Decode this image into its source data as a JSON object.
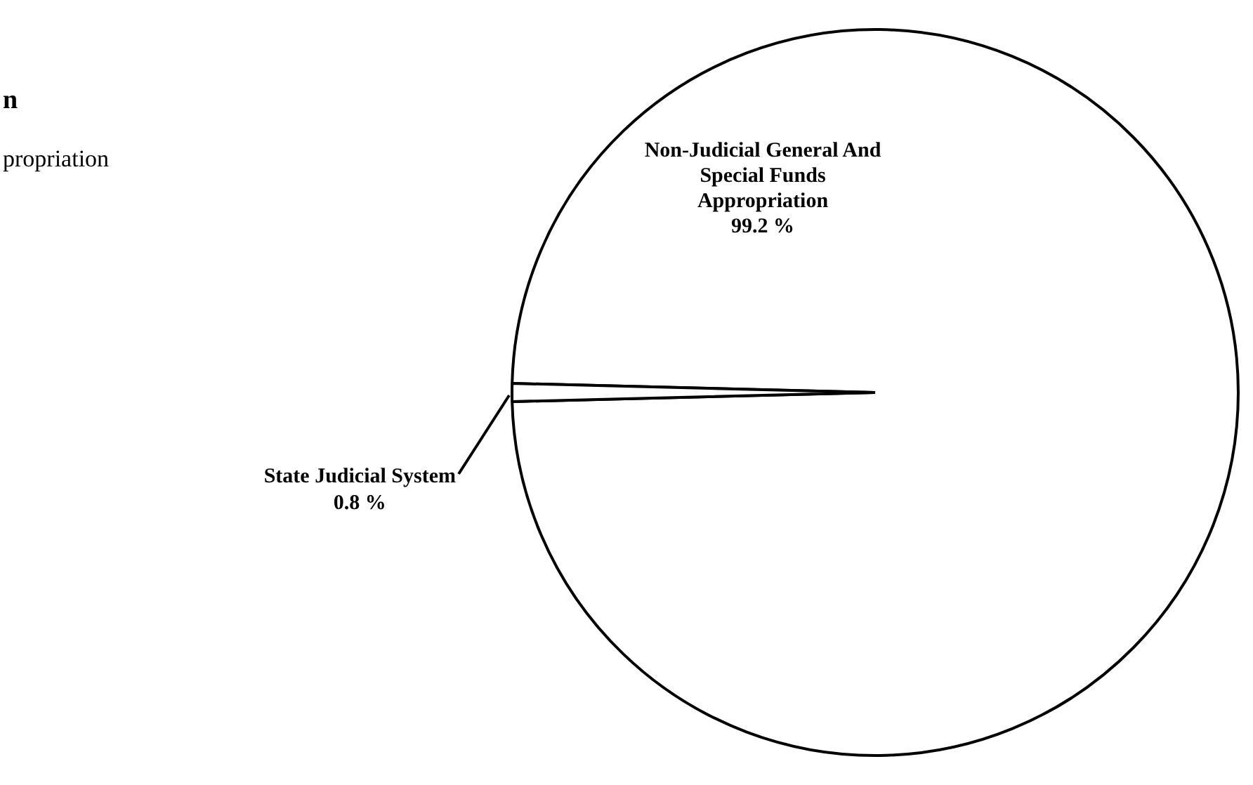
{
  "chart_data": {
    "type": "pie",
    "categories": [
      "Non-Judicial General And Special Funds Appropriation",
      "State Judicial System"
    ],
    "values": [
      99.2,
      0.8
    ],
    "colors": [
      "#ffffff",
      "#ffffff"
    ],
    "value_labels": [
      "99.2 %",
      "0.8 %"
    ],
    "legend": false,
    "annotations": [
      "n",
      "propriation"
    ]
  }
}
